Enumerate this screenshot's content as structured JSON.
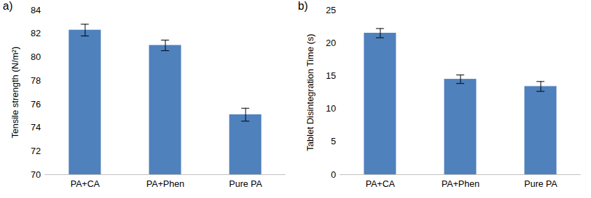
{
  "chart_data": [
    {
      "type": "bar",
      "title": "a)",
      "categories": [
        "PA+CA",
        "PA+Phen",
        "Pure PA"
      ],
      "values": [
        82.3,
        81.0,
        75.1
      ],
      "errors": [
        0.5,
        0.45,
        0.55
      ],
      "color": "#4f81bd",
      "ylabel": "Tensile strength (N/m²)",
      "ylim": [
        70,
        84
      ],
      "yticks": [
        70,
        72,
        74,
        76,
        78,
        80,
        82,
        84
      ],
      "grid": false
    },
    {
      "type": "bar",
      "title": "b)",
      "categories": [
        "PA+CA",
        "PA+Phen",
        "Pure PA"
      ],
      "values": [
        21.5,
        14.5,
        13.4
      ],
      "errors": [
        0.7,
        0.65,
        0.75
      ],
      "color": "#4f81bd",
      "ylabel": "Tablet Disintegration Time (s)",
      "ylim": [
        0,
        25
      ],
      "yticks": [
        0,
        5,
        10,
        15,
        20,
        25
      ],
      "grid": false
    }
  ]
}
